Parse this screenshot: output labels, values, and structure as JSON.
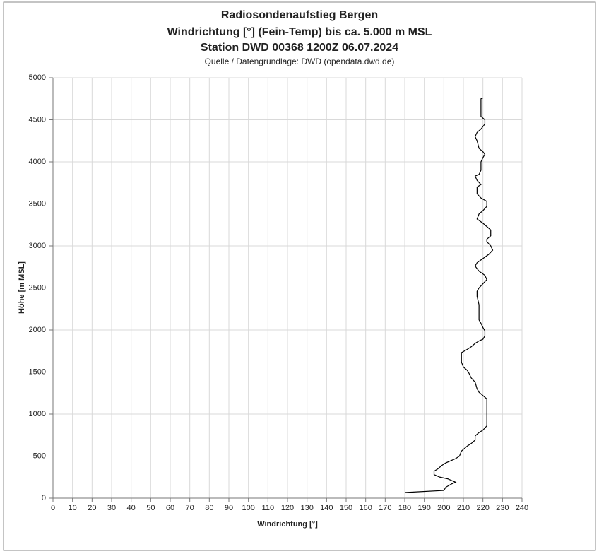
{
  "chart_data": {
    "type": "line",
    "title": [
      "Radiosondenaufstieg Bergen",
      "Windrichtung [°] (Fein-Temp) bis ca. 5.000 m MSL",
      "Station DWD 00368 1200Z 06.07.2024"
    ],
    "subtitle": "Quelle / Datengrundlage: DWD (opendata.dwd.de)",
    "xlabel": "Windrichtung [°]",
    "ylabel": "Höhe [m MSL]",
    "x": [
      180,
      200,
      201,
      204,
      206,
      205,
      202,
      198,
      195,
      195,
      197,
      199,
      201,
      203,
      206,
      208,
      209,
      211,
      212,
      214,
      216,
      216,
      218,
      220,
      222,
      222,
      222,
      222,
      222,
      220,
      218,
      217,
      216,
      214,
      213,
      212,
      210,
      209,
      209,
      209,
      212,
      214,
      216,
      218,
      220,
      221,
      221,
      220,
      219,
      218,
      218,
      218,
      217,
      217,
      218,
      220,
      222,
      221,
      218,
      216,
      217,
      220,
      223,
      225,
      224,
      222,
      222,
      224,
      224,
      222,
      220,
      217,
      218,
      220,
      222,
      222,
      219,
      217,
      217,
      219,
      217,
      216,
      218,
      219,
      219,
      220,
      221,
      220,
      218,
      217,
      216,
      217,
      219,
      221,
      221,
      219,
      219,
      219,
      220
    ],
    "series": [
      {
        "name": "Windrichtung",
        "color": "#000000",
        "values": [
          67,
          92,
          130,
          170,
          190,
          200,
          230,
          250,
          280,
          320,
          350,
          390,
          420,
          440,
          470,
          500,
          560,
          600,
          620,
          650,
          690,
          740,
          780,
          810,
          860,
          900,
          1000,
          1100,
          1180,
          1220,
          1260,
          1300,
          1380,
          1430,
          1480,
          1520,
          1560,
          1620,
          1680,
          1730,
          1770,
          1800,
          1840,
          1870,
          1890,
          1930,
          1990,
          2030,
          2080,
          2120,
          2200,
          2300,
          2400,
          2460,
          2500,
          2550,
          2600,
          2650,
          2700,
          2760,
          2800,
          2850,
          2900,
          2950,
          3000,
          3050,
          3080,
          3120,
          3190,
          3230,
          3270,
          3320,
          3380,
          3420,
          3470,
          3530,
          3570,
          3620,
          3700,
          3730,
          3780,
          3830,
          3850,
          3900,
          4000,
          4050,
          4090,
          4120,
          4160,
          4250,
          4300,
          4350,
          4390,
          4450,
          4500,
          4540,
          4640,
          4750,
          4760
        ]
      }
    ],
    "xlim": [
      0,
      240
    ],
    "xticks": [
      0,
      10,
      20,
      30,
      40,
      50,
      60,
      70,
      80,
      90,
      100,
      110,
      120,
      130,
      140,
      150,
      160,
      170,
      180,
      190,
      200,
      210,
      220,
      230,
      240
    ],
    "ylim": [
      0,
      5000
    ],
    "yticks": [
      0,
      500,
      1000,
      1500,
      2000,
      2500,
      3000,
      3500,
      4000,
      4500,
      5000
    ],
    "grid": true
  }
}
